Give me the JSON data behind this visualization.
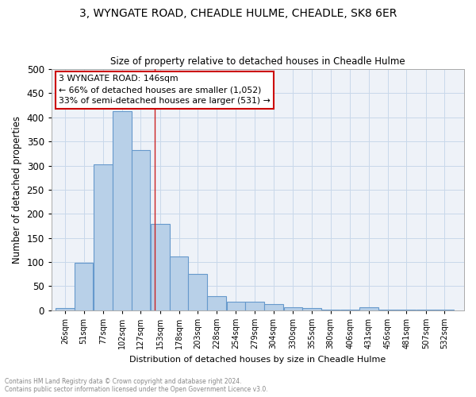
{
  "title": "3, WYNGATE ROAD, CHEADLE HULME, CHEADLE, SK8 6ER",
  "subtitle": "Size of property relative to detached houses in Cheadle Hulme",
  "xlabel": "Distribution of detached houses by size in Cheadle Hulme",
  "ylabel": "Number of detached properties",
  "bin_labels": [
    "26sqm",
    "51sqm",
    "77sqm",
    "102sqm",
    "127sqm",
    "153sqm",
    "178sqm",
    "203sqm",
    "228sqm",
    "254sqm",
    "279sqm",
    "304sqm",
    "330sqm",
    "355sqm",
    "380sqm",
    "406sqm",
    "431sqm",
    "456sqm",
    "481sqm",
    "507sqm",
    "532sqm"
  ],
  "bar_heights": [
    5,
    99,
    302,
    413,
    332,
    179,
    112,
    75,
    30,
    17,
    17,
    12,
    6,
    4,
    2,
    2,
    7,
    2,
    1,
    2,
    1
  ],
  "bar_color": "#b8d0e8",
  "bar_edgecolor": "#6699cc",
  "bar_linewidth": 0.8,
  "grid_color": "#c8d8ea",
  "bg_color": "#eef2f8",
  "property_line_x": 146,
  "annotation_title": "3 WYNGATE ROAD: 146sqm",
  "annotation_line1": "← 66% of detached houses are smaller (1,052)",
  "annotation_line2": "33% of semi-detached houses are larger (531) →",
  "annotation_box_color": "#ffffff",
  "annotation_border_color": "#cc0000",
  "vline_color": "#cc2222",
  "ylim": [
    0,
    500
  ],
  "yticks": [
    0,
    50,
    100,
    150,
    200,
    250,
    300,
    350,
    400,
    450,
    500
  ],
  "bin_centers": [
    26,
    51,
    77,
    102,
    127,
    153,
    178,
    203,
    228,
    254,
    279,
    304,
    330,
    355,
    380,
    406,
    431,
    456,
    481,
    507,
    532
  ],
  "bin_width": 25,
  "xlim_left": 8,
  "xlim_right": 558,
  "footer_line1": "Contains HM Land Registry data © Crown copyright and database right 2024.",
  "footer_line2": "Contains public sector information licensed under the Open Government Licence v3.0."
}
